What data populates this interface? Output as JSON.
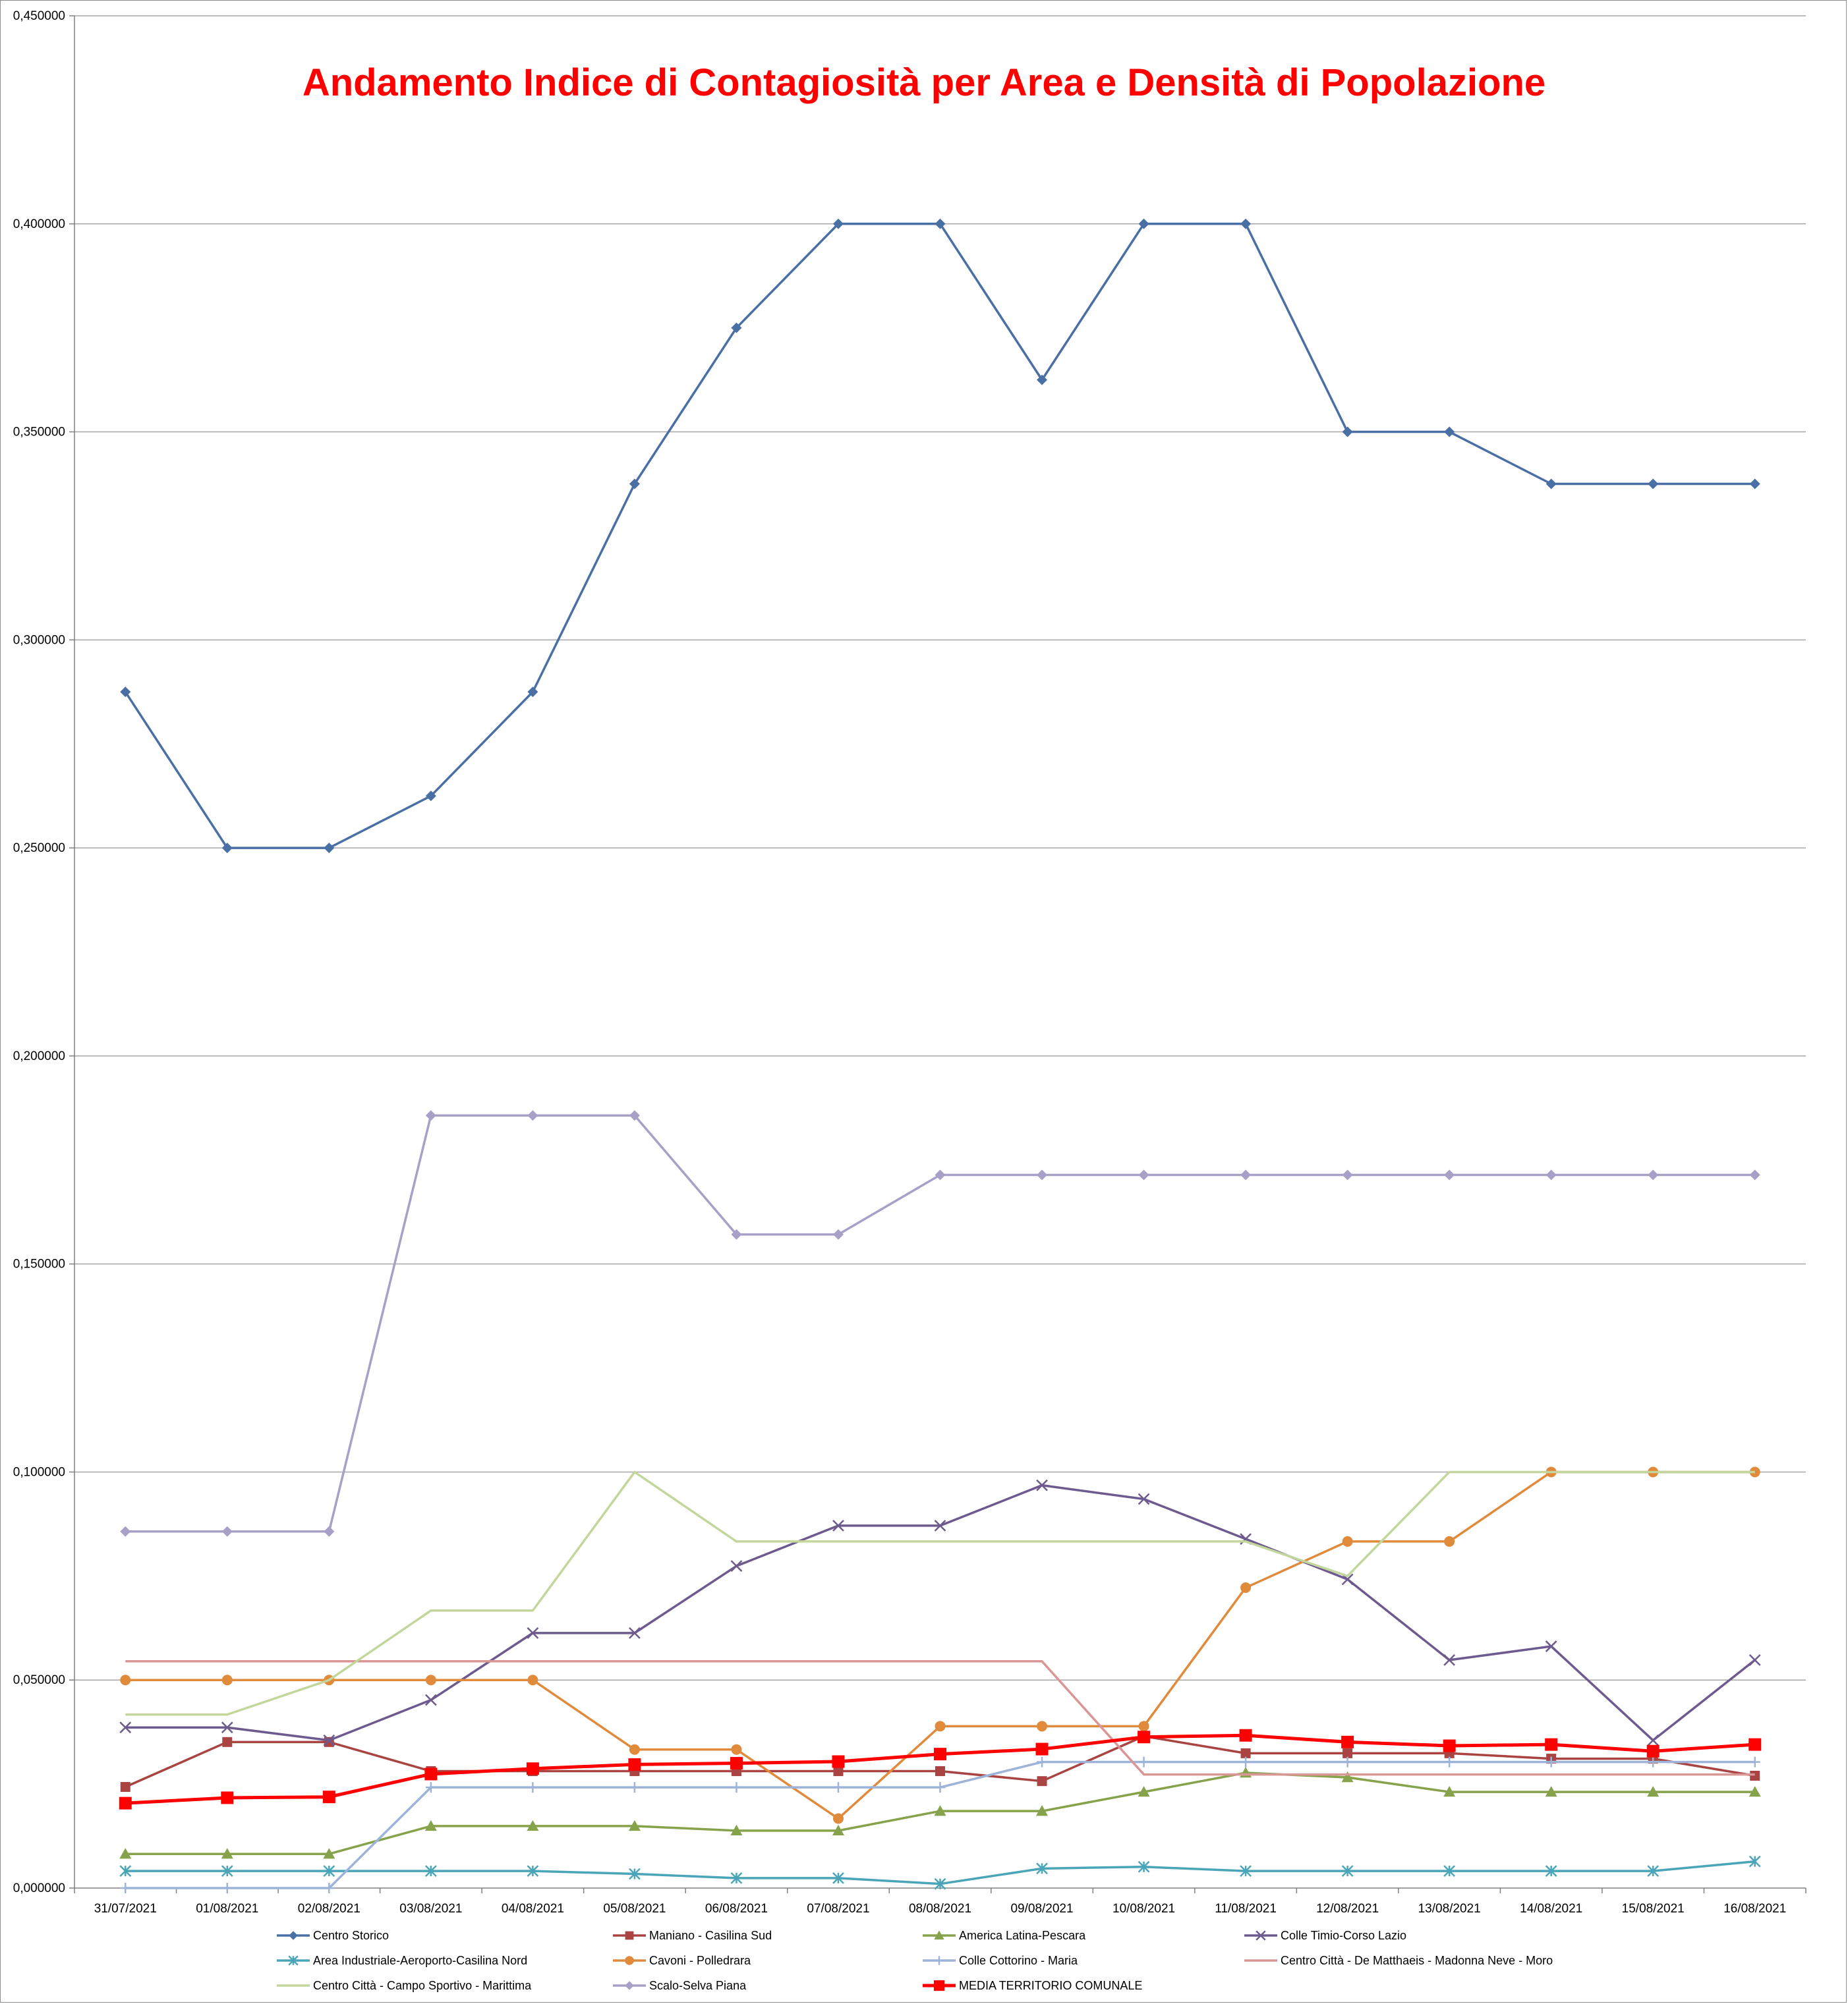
{
  "chart_data": {
    "type": "line",
    "title": "Andamento Indice di Contagiosità per Area e Densità di Popolazione",
    "xlabel": "",
    "ylabel": "",
    "ylim": [
      0,
      0.45
    ],
    "y_ticks": [
      "0,000000",
      "0,050000",
      "0,100000",
      "0,150000",
      "0,200000",
      "0,250000",
      "0,300000",
      "0,350000",
      "0,400000",
      "0,450000"
    ],
    "grid": true,
    "legend_position": "bottom",
    "categories": [
      "31/07/2021",
      "01/08/2021",
      "02/08/2021",
      "03/08/2021",
      "04/08/2021",
      "05/08/2021",
      "06/08/2021",
      "07/08/2021",
      "08/08/2021",
      "09/08/2021",
      "10/08/2021",
      "11/08/2021",
      "12/08/2021",
      "13/08/2021",
      "14/08/2021",
      "15/08/2021",
      "16/08/2021"
    ],
    "series": [
      {
        "name": "Centro Storico",
        "color": "#4a6fa5",
        "marker": "diamond",
        "width": 3.5,
        "values": [
          0.2875,
          0.25,
          0.25,
          0.2625,
          0.2875,
          0.3375,
          0.375,
          0.4,
          0.4,
          0.3625,
          0.4,
          0.4,
          0.35,
          0.35,
          0.3375,
          0.3375,
          0.3375
        ]
      },
      {
        "name": "Maniano - Casilina Sud",
        "color": "#a94442",
        "marker": "square",
        "width": 3.5,
        "values": [
          0.0243,
          0.0351,
          0.0351,
          0.0281,
          0.0281,
          0.0281,
          0.0281,
          0.0281,
          0.0281,
          0.0257,
          0.0365,
          0.0324,
          0.0324,
          0.0324,
          0.0311,
          0.0311,
          0.027
        ]
      },
      {
        "name": "America Latina-Pescara",
        "color": "#86a24b",
        "marker": "triangle",
        "width": 3.5,
        "values": [
          0.0082,
          0.0082,
          0.0082,
          0.0149,
          0.0149,
          0.0149,
          0.0138,
          0.0138,
          0.0185,
          0.0185,
          0.0231,
          0.0277,
          0.0266,
          0.0231,
          0.0231,
          0.0231,
          0.0231
        ]
      },
      {
        "name": "Colle Timio-Corso Lazio",
        "color": "#6d5a8e",
        "marker": "x",
        "width": 3.5,
        "values": [
          0.0386,
          0.0386,
          0.0355,
          0.0452,
          0.0613,
          0.0613,
          0.0774,
          0.0871,
          0.0871,
          0.0968,
          0.0935,
          0.0839,
          0.0742,
          0.0548,
          0.0581,
          0.0355,
          0.0548
        ]
      },
      {
        "name": "Area Industriale-Aeroporto-Casilina Nord",
        "color": "#4aa5b8",
        "marker": "star",
        "width": 3.5,
        "values": [
          0.0041,
          0.0041,
          0.0041,
          0.0041,
          0.0041,
          0.0034,
          0.0024,
          0.0024,
          0.001,
          0.0047,
          0.0051,
          0.0041,
          0.0041,
          0.0041,
          0.0041,
          0.0041,
          0.0064
        ]
      },
      {
        "name": "Cavoni - Polledrara",
        "color": "#e08a3c",
        "marker": "circle",
        "width": 3.5,
        "values": [
          0.05,
          0.05,
          0.05,
          0.05,
          0.05,
          0.0333,
          0.0333,
          0.0167,
          0.0389,
          0.0389,
          0.0389,
          0.0722,
          0.0833,
          0.0833,
          0.1,
          0.1,
          0.1
        ]
      },
      {
        "name": "Colle Cottorino - Maria",
        "color": "#9db3d9",
        "marker": "plus",
        "width": 3.5,
        "values": [
          0.0,
          0.0,
          0.0,
          0.0242,
          0.0242,
          0.0242,
          0.0242,
          0.0242,
          0.0242,
          0.0303,
          0.0303,
          0.0303,
          0.0303,
          0.0303,
          0.0303,
          0.0303,
          0.0303
        ]
      },
      {
        "name": "Centro Città - De Matthaeis - Madonna Neve - Moro",
        "color": "#d99694",
        "marker": "none",
        "width": 3.5,
        "values": [
          0.0545,
          0.0545,
          0.0545,
          0.0545,
          0.0545,
          0.0545,
          0.0545,
          0.0545,
          0.0545,
          0.0545,
          0.0273,
          0.0273,
          0.0273,
          0.0273,
          0.0273,
          0.0273,
          0.0273
        ]
      },
      {
        "name": "Centro Città - Campo Sportivo - Marittima",
        "color": "#c3d69b",
        "marker": "none",
        "width": 3.5,
        "values": [
          0.0417,
          0.0417,
          0.05,
          0.0667,
          0.0667,
          0.1,
          0.0833,
          0.0833,
          0.0833,
          0.0833,
          0.0833,
          0.0833,
          0.075,
          0.1,
          0.1,
          0.1,
          0.1
        ]
      },
      {
        "name": "Scalo-Selva Piana",
        "color": "#a9a0c8",
        "marker": "diamond",
        "width": 3.5,
        "values": [
          0.0857,
          0.0857,
          0.0857,
          0.1857,
          0.1857,
          0.1857,
          0.1571,
          0.1571,
          0.1714,
          0.1714,
          0.1714,
          0.1714,
          0.1714,
          0.1714,
          0.1714,
          0.1714,
          0.1714
        ]
      },
      {
        "name": "MEDIA TERRITORIO COMUNALE",
        "color": "#ff0000",
        "marker": "bigsquare",
        "width": 5,
        "values": [
          0.0204,
          0.0217,
          0.0219,
          0.0274,
          0.0287,
          0.0297,
          0.03,
          0.0304,
          0.0322,
          0.0334,
          0.0363,
          0.0367,
          0.0351,
          0.0342,
          0.0345,
          0.0329,
          0.0345
        ]
      }
    ]
  }
}
